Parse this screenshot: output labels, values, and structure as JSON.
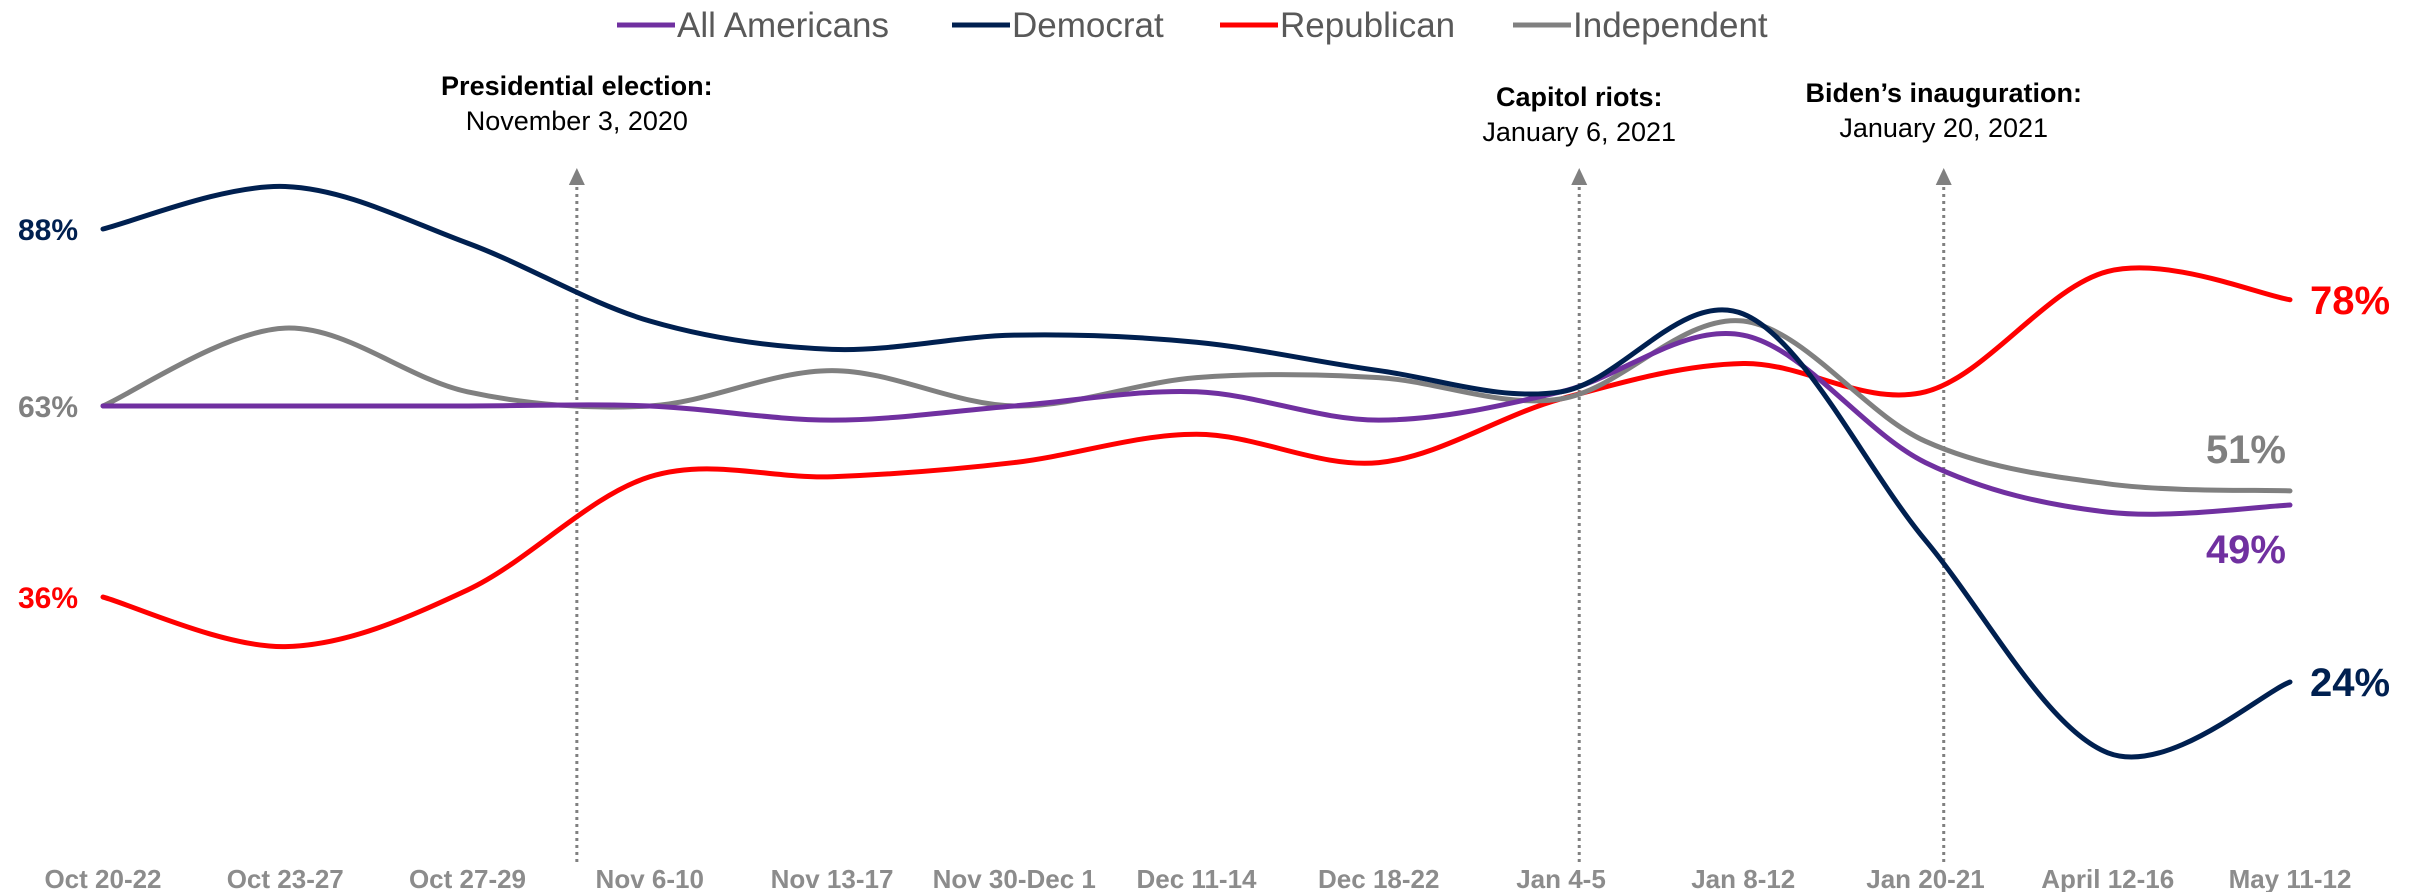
{
  "chart_data": {
    "type": "line",
    "title": "",
    "xlabel": "",
    "ylabel": "",
    "ylim": [
      0,
      100
    ],
    "grid": false,
    "legend": "top-center",
    "categories": [
      "Oct 20-22",
      "Oct 23-27",
      "Oct 27-29",
      "Nov 6-10",
      "Nov 13-17",
      "Nov 30-Dec 1",
      "Dec 11-14",
      "Dec 18-22",
      "Jan 4-5",
      "Jan 8-12",
      "Jan 20-21",
      "April 12-16",
      "May 11-12"
    ],
    "series": [
      {
        "name": "All Americans",
        "color": "#7030a0",
        "values": [
          63,
          63,
          63,
          63,
          61,
          63,
          65,
          61,
          65,
          73,
          55,
          48,
          49
        ],
        "start_label": "",
        "end_label": "49%"
      },
      {
        "name": "Democrat",
        "color": "#002050",
        "values": [
          88,
          94,
          86,
          75,
          71,
          73,
          72,
          68,
          65,
          76,
          44,
          14,
          24
        ],
        "start_label": "88%",
        "end_label": "24%"
      },
      {
        "name": "Republican",
        "color": "#ff0000",
        "values": [
          36,
          29,
          37,
          53,
          53,
          55,
          59,
          55,
          64,
          69,
          65,
          82,
          78
        ],
        "start_label": "36%",
        "end_label": "78%"
      },
      {
        "name": "Independent",
        "color": "#808080",
        "values": [
          63,
          74,
          65,
          63,
          68,
          63,
          67,
          67,
          64,
          75,
          58,
          52,
          51
        ],
        "start_label": "63%",
        "end_label": "51%"
      }
    ],
    "annotations": [
      {
        "title": "Presidential election:",
        "date": "November 3, 2020",
        "x": 2.6
      },
      {
        "title": "Capitol riots:",
        "date": "January 6, 2021",
        "x": 8.1
      },
      {
        "title": "Biden’s inauguration:",
        "date": "January 20, 2021",
        "x": 10.1
      }
    ]
  }
}
